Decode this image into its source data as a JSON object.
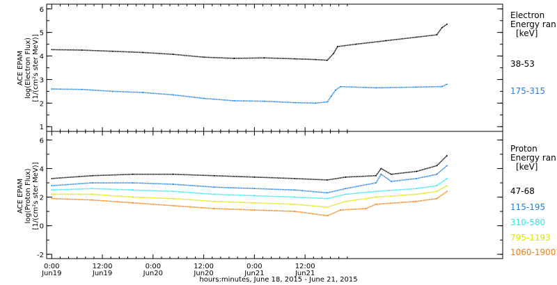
{
  "xaxis": {
    "title": "hours:minutes, June 18, 2015 - June 21, 2015",
    "ticks": [
      {
        "time": "0:00",
        "date": "Jun19"
      },
      {
        "time": "12:00",
        "date": "Jun19"
      },
      {
        "time": "0:00",
        "date": "Jun20"
      },
      {
        "time": "12:00",
        "date": "Jun20"
      },
      {
        "time": "0:00",
        "date": "Jun21"
      },
      {
        "time": "12:00",
        "date": "Jun21"
      }
    ]
  },
  "chart_data": [
    {
      "type": "scatter",
      "panel": "electron",
      "ylabel_lines": [
        "ACE EPAM",
        "log(Electron Flux)",
        "[1/(cm²s ster MeV)]"
      ],
      "ylim": [
        0.8,
        6.2
      ],
      "yticks": [
        1,
        2,
        3,
        4,
        5,
        6
      ],
      "legend_title": [
        "Electron",
        "Energy ran",
        "[keV]"
      ],
      "series": [
        {
          "name": "38-53",
          "color": "#000000",
          "points": [
            [
              0,
              4.27
            ],
            [
              0.3,
              4.25
            ],
            [
              0.6,
              4.2
            ],
            [
              0.9,
              4.15
            ],
            [
              1.2,
              4.07
            ],
            [
              1.5,
              3.95
            ],
            [
              1.8,
              3.9
            ],
            [
              2.1,
              3.92
            ],
            [
              2.4,
              3.88
            ],
            [
              2.6,
              3.85
            ],
            [
              2.72,
              3.82
            ],
            [
              2.78,
              4.1
            ],
            [
              2.82,
              4.4
            ],
            [
              3.0,
              4.5
            ],
            [
              3.3,
              4.65
            ],
            [
              3.6,
              4.8
            ],
            [
              3.8,
              4.9
            ],
            [
              3.85,
              5.2
            ],
            [
              3.9,
              5.35
            ]
          ]
        },
        {
          "name": "175-315",
          "color": "#1f7fe0",
          "points": [
            [
              0,
              2.6
            ],
            [
              0.3,
              2.58
            ],
            [
              0.6,
              2.5
            ],
            [
              0.9,
              2.45
            ],
            [
              1.2,
              2.35
            ],
            [
              1.5,
              2.2
            ],
            [
              1.8,
              2.1
            ],
            [
              2.1,
              2.08
            ],
            [
              2.4,
              2.02
            ],
            [
              2.6,
              2.0
            ],
            [
              2.72,
              2.05
            ],
            [
              2.76,
              2.3
            ],
            [
              2.8,
              2.55
            ],
            [
              2.85,
              2.7
            ],
            [
              3.2,
              2.65
            ],
            [
              3.6,
              2.68
            ],
            [
              3.85,
              2.7
            ],
            [
              3.9,
              2.8
            ]
          ]
        }
      ]
    },
    {
      "type": "scatter",
      "panel": "proton",
      "ylabel_lines": [
        "ACE EPAM",
        "log(Proton Flux)",
        "[1/(cm²s ster MeV)]"
      ],
      "ylim": [
        -2.3,
        6.6
      ],
      "yticks": [
        -2,
        0,
        2,
        4,
        6
      ],
      "legend_title": [
        "Proton",
        "Energy ran",
        "[keV]"
      ],
      "series": [
        {
          "name": "47-68",
          "color": "#000000",
          "points": [
            [
              0,
              3.3
            ],
            [
              0.4,
              3.5
            ],
            [
              0.8,
              3.6
            ],
            [
              1.2,
              3.6
            ],
            [
              1.6,
              3.5
            ],
            [
              2.0,
              3.4
            ],
            [
              2.4,
              3.3
            ],
            [
              2.72,
              3.2
            ],
            [
              2.9,
              3.4
            ],
            [
              3.2,
              3.5
            ],
            [
              3.25,
              4.0
            ],
            [
              3.35,
              3.6
            ],
            [
              3.6,
              3.8
            ],
            [
              3.8,
              4.2
            ],
            [
              3.9,
              4.9
            ]
          ]
        },
        {
          "name": "115-195",
          "color": "#1f7fe0",
          "points": [
            [
              0,
              2.8
            ],
            [
              0.4,
              3.0
            ],
            [
              0.8,
              3.0
            ],
            [
              1.2,
              2.9
            ],
            [
              1.6,
              2.7
            ],
            [
              2.0,
              2.6
            ],
            [
              2.4,
              2.5
            ],
            [
              2.72,
              2.3
            ],
            [
              2.9,
              2.6
            ],
            [
              3.2,
              3.0
            ],
            [
              3.25,
              3.6
            ],
            [
              3.35,
              3.1
            ],
            [
              3.6,
              3.3
            ],
            [
              3.8,
              3.6
            ],
            [
              3.9,
              4.2
            ]
          ]
        },
        {
          "name": "310-580",
          "color": "#2ee6e6",
          "points": [
            [
              0,
              2.5
            ],
            [
              0.4,
              2.6
            ],
            [
              0.8,
              2.5
            ],
            [
              1.2,
              2.4
            ],
            [
              1.6,
              2.2
            ],
            [
              2.0,
              2.1
            ],
            [
              2.4,
              2.0
            ],
            [
              2.72,
              1.9
            ],
            [
              2.9,
              2.2
            ],
            [
              3.2,
              2.4
            ],
            [
              3.6,
              2.6
            ],
            [
              3.8,
              2.8
            ],
            [
              3.9,
              3.3
            ]
          ]
        },
        {
          "name": "795-1193",
          "color": "#d9e600",
          "points": [
            [
              0,
              2.2
            ],
            [
              0.4,
              2.2
            ],
            [
              0.8,
              2.0
            ],
            [
              1.2,
              1.9
            ],
            [
              1.6,
              1.7
            ],
            [
              2.0,
              1.6
            ],
            [
              2.4,
              1.5
            ],
            [
              2.72,
              1.3
            ],
            [
              2.9,
              1.7
            ],
            [
              3.2,
              2.0
            ],
            [
              3.6,
              2.2
            ],
            [
              3.8,
              2.4
            ],
            [
              3.9,
              2.8
            ]
          ]
        },
        {
          "name": "1060-1900",
          "color": "#f07f10",
          "points": [
            [
              0,
              1.9
            ],
            [
              0.4,
              1.8
            ],
            [
              0.8,
              1.6
            ],
            [
              1.2,
              1.4
            ],
            [
              1.6,
              1.2
            ],
            [
              2.0,
              1.1
            ],
            [
              2.4,
              1.0
            ],
            [
              2.72,
              0.7
            ],
            [
              2.85,
              1.1
            ],
            [
              3.1,
              1.2
            ],
            [
              3.2,
              1.5
            ],
            [
              3.6,
              1.7
            ],
            [
              3.8,
              1.9
            ],
            [
              3.9,
              2.4
            ]
          ]
        }
      ]
    }
  ]
}
